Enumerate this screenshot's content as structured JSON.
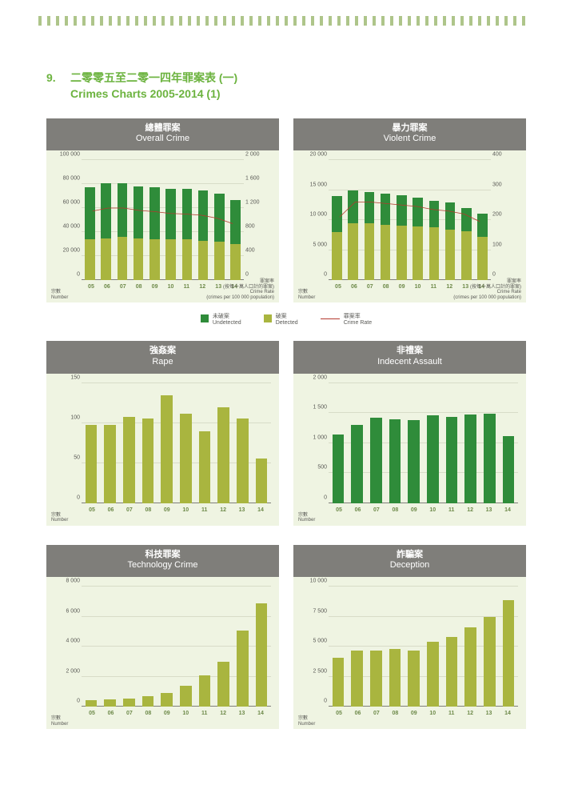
{
  "page": {
    "section_number": "9.",
    "title_cn": "二零零五至二零一四年罪案表 (一)",
    "title_en": "Crimes Charts 2005-2014 (1)"
  },
  "colors": {
    "panel_bg": "#eff4e2",
    "header_bg": "#7f7e7a",
    "header_text": "#ffffff",
    "accent": "#6cb33f",
    "tick_border": "#aec58a",
    "bar_detected": "#a9b53f",
    "bar_undetected": "#2f8c3a",
    "bar_single_green": "#2f8c3a",
    "bar_single_olive": "#a9b53f",
    "crime_rate_line": "#b3392e",
    "grid": "#d8dcc8",
    "axis_text": "#5a5a56",
    "x_label": "#6e8a4a"
  },
  "categories": [
    "05",
    "06",
    "07",
    "08",
    "09",
    "10",
    "11",
    "12",
    "13",
    "14"
  ],
  "axis_labels": {
    "number_cn": "宗數",
    "number_en": "Number",
    "rate_cn": "罪案率",
    "rate_note_cn": "(按每十萬人口計的罪案)",
    "rate_en": "Crime Rate",
    "rate_note_en": "(crimes per 100 000 population)"
  },
  "legend": {
    "undetected_cn": "未破案",
    "undetected_en": "Undetected",
    "detected_cn": "破案",
    "detected_en": "Detected",
    "rate_cn": "罪案率",
    "rate_en": "Crime Rate"
  },
  "charts": {
    "overall": {
      "title_cn": "總體罪案",
      "title_en": "Overall Crime",
      "type": "stacked_bar_dual_axis",
      "y_left": {
        "min": 0,
        "max": 100000,
        "step": 20000,
        "fmt": "space"
      },
      "y_right": {
        "min": 0,
        "max": 2000,
        "step": 400,
        "fmt": "space"
      },
      "detected": [
        34000,
        35000,
        36000,
        35000,
        34000,
        34000,
        34000,
        33000,
        32000,
        30000
      ],
      "undetected": [
        43500,
        46000,
        45000,
        43500,
        43500,
        42000,
        42000,
        42000,
        40000,
        37000
      ],
      "rate": [
        1150,
        1200,
        1200,
        1160,
        1140,
        1110,
        1100,
        1080,
        1030,
        940
      ],
      "bar_colors": {
        "lower": "#a9b53f",
        "upper": "#2f8c3a"
      }
    },
    "violent": {
      "title_cn": "暴力罪案",
      "title_en": "Violent Crime",
      "type": "stacked_bar_dual_axis",
      "y_left": {
        "min": 0,
        "max": 20000,
        "step": 5000,
        "fmt": "space"
      },
      "y_right": {
        "min": 0,
        "max": 400,
        "step": 100,
        "fmt": "plain"
      },
      "detected": [
        8000,
        9500,
        9500,
        9300,
        9100,
        9000,
        8800,
        8500,
        8200,
        7300
      ],
      "undetected": [
        6000,
        5500,
        5200,
        5200,
        5100,
        4800,
        4500,
        4500,
        3900,
        3800
      ],
      "rate": [
        210,
        260,
        260,
        255,
        250,
        245,
        235,
        230,
        220,
        195
      ],
      "bar_colors": {
        "lower": "#a9b53f",
        "upper": "#2f8c3a"
      }
    },
    "rape": {
      "title_cn": "強姦案",
      "title_en": "Rape",
      "type": "single_bar",
      "y_left": {
        "min": 0,
        "max": 150,
        "step": 50,
        "fmt": "plain"
      },
      "values": [
        98,
        98,
        108,
        106,
        135,
        112,
        90,
        120,
        106,
        56
      ],
      "bar_color": "#a9b53f"
    },
    "indecent": {
      "title_cn": "非禮案",
      "title_en": "Indecent Assault",
      "type": "single_bar",
      "y_left": {
        "min": 0,
        "max": 2000,
        "step": 500,
        "fmt": "space"
      },
      "values": [
        1150,
        1300,
        1420,
        1400,
        1380,
        1470,
        1440,
        1480,
        1490,
        1120
      ],
      "bar_color": "#2f8c3a"
    },
    "tech": {
      "title_cn": "科技罪案",
      "title_en": "Technology Crime",
      "type": "single_bar",
      "y_left": {
        "min": 0,
        "max": 8000,
        "step": 2000,
        "fmt": "space"
      },
      "values": [
        450,
        500,
        550,
        700,
        900,
        1400,
        2100,
        3000,
        5100,
        6900
      ],
      "bar_color": "#a9b53f"
    },
    "deception": {
      "title_cn": "詐騙案",
      "title_en": "Deception",
      "type": "single_bar",
      "y_left": {
        "min": 0,
        "max": 10000,
        "step": 2500,
        "fmt": "space"
      },
      "values": [
        4100,
        4700,
        4700,
        4800,
        4700,
        5400,
        5800,
        6600,
        7500,
        8900
      ],
      "bar_color": "#a9b53f"
    }
  }
}
